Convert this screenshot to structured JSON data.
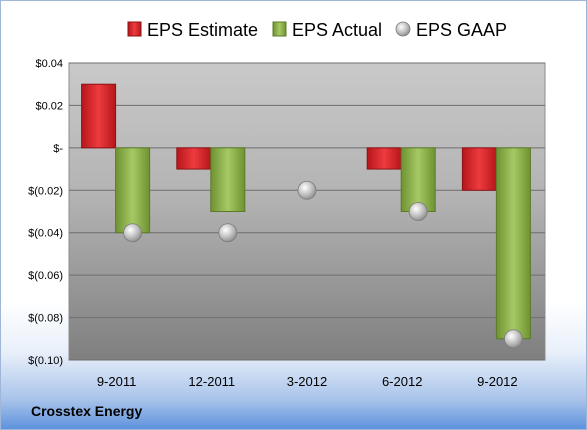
{
  "company": "Crosstex Energy",
  "colors": {
    "estimate": "#d9252a",
    "actual": "#8cb04a",
    "gaap": "#b8b8b8"
  },
  "chart_data": {
    "type": "bar",
    "categories": [
      "9-2011",
      "12-2011",
      "3-2012",
      "6-2012",
      "9-2012"
    ],
    "series": [
      {
        "name": "EPS Estimate",
        "type": "bar",
        "values": [
          0.03,
          -0.01,
          null,
          -0.01,
          -0.02
        ]
      },
      {
        "name": "EPS Actual",
        "type": "bar",
        "values": [
          -0.04,
          -0.03,
          null,
          -0.03,
          -0.09
        ]
      },
      {
        "name": "EPS GAAP",
        "type": "scatter",
        "values": [
          -0.04,
          -0.04,
          -0.02,
          -0.03,
          -0.09
        ]
      }
    ],
    "ylim": [
      -0.1,
      0.04
    ],
    "yticks": [
      0.04,
      0.02,
      0,
      -0.02,
      -0.04,
      -0.06,
      -0.08,
      -0.1
    ],
    "ytick_labels": [
      "$0.04",
      "$0.02",
      "$-",
      "$(0.02)",
      "$(0.04)",
      "$(0.06)",
      "$(0.08)",
      "$(0.10)"
    ],
    "grid": true,
    "legend": "top"
  }
}
